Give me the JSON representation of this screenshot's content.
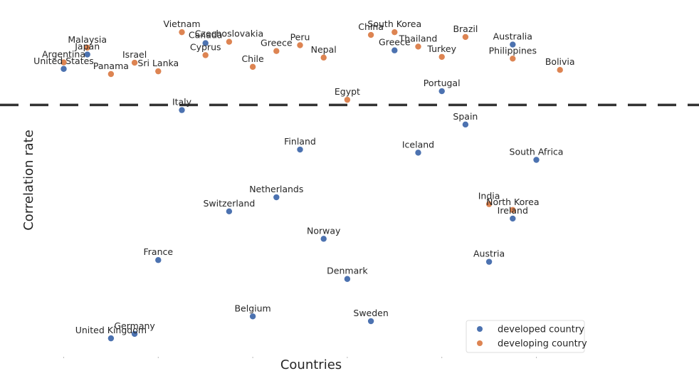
{
  "chart_data": {
    "type": "scatter",
    "xlabel": "Countries",
    "ylabel": "Correlation rate",
    "grid": false,
    "threshold_line": "dashed",
    "legend_position": "bottom-right",
    "colors": {
      "developed country": "#4c72b0",
      "developing country": "#dd8452"
    },
    "legend": [
      "developed country",
      "developing country"
    ],
    "series": [
      {
        "name": "developed country",
        "points": [
          {
            "label": "United States",
            "x": 0,
            "y": 0.82
          },
          {
            "label": "Japan",
            "x": 1,
            "y": 0.862
          },
          {
            "label": "United Kingdom",
            "x": 2,
            "y": 0.035
          },
          {
            "label": "Germany",
            "x": 3,
            "y": 0.048
          },
          {
            "label": "France",
            "x": 4,
            "y": 0.263
          },
          {
            "label": "Italy",
            "x": 5,
            "y": 0.7
          },
          {
            "label": "Canada",
            "x": 6,
            "y": 0.895
          },
          {
            "label": "Switzerland",
            "x": 7,
            "y": 0.405
          },
          {
            "label": "Belgium",
            "x": 8,
            "y": 0.099
          },
          {
            "label": "Netherlands",
            "x": 9,
            "y": 0.446
          },
          {
            "label": "Finland",
            "x": 10,
            "y": 0.585
          },
          {
            "label": "Norway",
            "x": 11,
            "y": 0.325
          },
          {
            "label": "Denmark",
            "x": 12,
            "y": 0.208
          },
          {
            "label": "Sweden",
            "x": 13,
            "y": 0.085
          },
          {
            "label": "Greece",
            "x": 14,
            "y": 0.874
          },
          {
            "label": "Iceland",
            "x": 15,
            "y": 0.576
          },
          {
            "label": "Portugal",
            "x": 16,
            "y": 0.755
          },
          {
            "label": "Spain",
            "x": 17,
            "y": 0.658
          },
          {
            "label": "Austria",
            "x": 18,
            "y": 0.258
          },
          {
            "label": "Ireland",
            "x": 19,
            "y": 0.384
          },
          {
            "label": "Australia",
            "x": 19,
            "y": 0.891
          },
          {
            "label": "South Africa",
            "x": 20,
            "y": 0.555
          }
        ]
      },
      {
        "name": "developing country",
        "points": [
          {
            "label": "Argentina",
            "x": 0,
            "y": 0.839
          },
          {
            "label": "Malaysia",
            "x": 1,
            "y": 0.882
          },
          {
            "label": "Panama",
            "x": 2,
            "y": 0.805
          },
          {
            "label": "Israel",
            "x": 3,
            "y": 0.838
          },
          {
            "label": "Sri Lanka",
            "x": 4,
            "y": 0.813
          },
          {
            "label": "Vietnam",
            "x": 5,
            "y": 0.927
          },
          {
            "label": "Cyprus",
            "x": 6,
            "y": 0.86
          },
          {
            "label": "Czechoslovakia",
            "x": 7,
            "y": 0.899
          },
          {
            "label": "Chile",
            "x": 8,
            "y": 0.826
          },
          {
            "label": "Greece",
            "x": 9,
            "y": 0.872
          },
          {
            "label": "Peru",
            "x": 10,
            "y": 0.889
          },
          {
            "label": "Nepal",
            "x": 11,
            "y": 0.853
          },
          {
            "label": "Egypt",
            "x": 12,
            "y": 0.73
          },
          {
            "label": "China",
            "x": 13,
            "y": 0.919
          },
          {
            "label": "South Korea",
            "x": 14,
            "y": 0.927
          },
          {
            "label": "Thailand",
            "x": 15,
            "y": 0.885
          },
          {
            "label": "Turkey",
            "x": 16,
            "y": 0.855
          },
          {
            "label": "Brazil",
            "x": 17,
            "y": 0.913
          },
          {
            "label": "India",
            "x": 18,
            "y": 0.426
          },
          {
            "label": "Philippines",
            "x": 19,
            "y": 0.85
          },
          {
            "label": "North Korea",
            "x": 19,
            "y": 0.409
          },
          {
            "label": "Bolivia",
            "x": 21,
            "y": 0.817
          }
        ]
      }
    ],
    "threshold": 0.715,
    "xlim": [
      -1,
      26.5
    ],
    "ylim": [
      0,
      1
    ]
  }
}
